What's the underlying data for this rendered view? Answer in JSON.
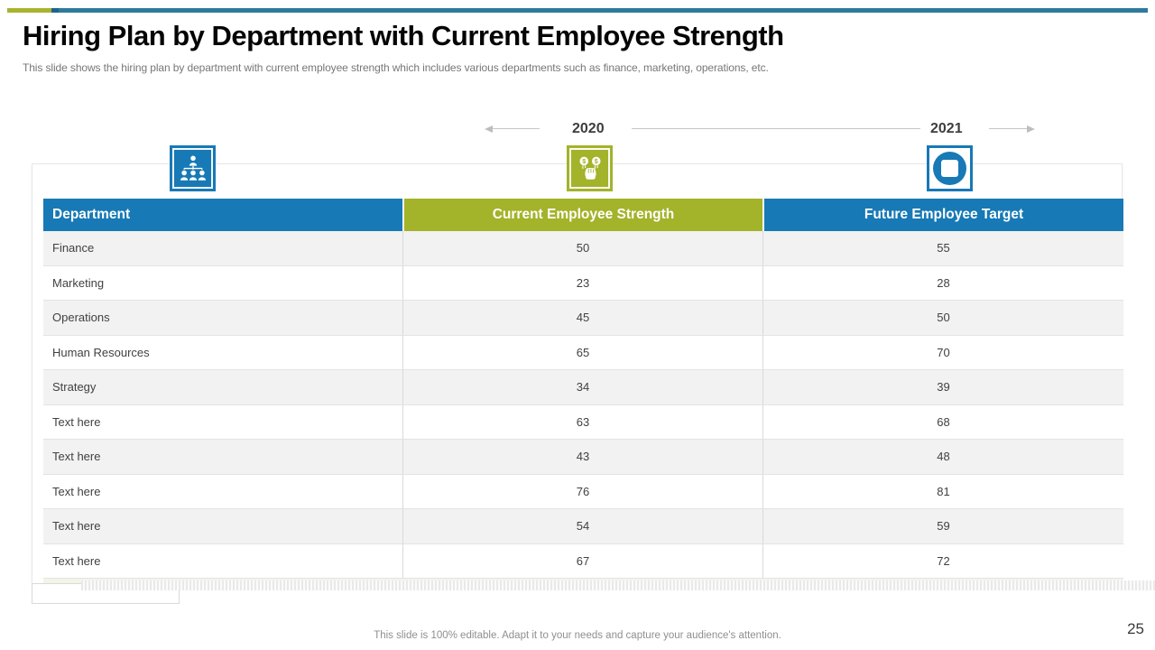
{
  "slide": {
    "title": "Hiring Plan by Department with Current Employee Strength",
    "subtitle": "This slide shows the hiring plan by department with current employee strength which includes various departments such as finance, marketing, operations, etc.",
    "footer_note": "This slide is 100% editable. Adapt it to your needs and capture your audience's attention.",
    "page_number": "25"
  },
  "timeline": {
    "left_year": "2020",
    "right_year": "2021"
  },
  "icons": {
    "left": "org-chart-icon",
    "middle": "money-hand-icon",
    "right": "circle-square-icon"
  },
  "colors": {
    "accent_blue": "#1779b5",
    "accent_olive": "#a3b32a",
    "topbar_blue": "#2d7a9e",
    "topbar_olive": "#a9b42e",
    "row_stripe": "#f2f2f2"
  },
  "table": {
    "columns": [
      "Department",
      "Current Employee Strength",
      "Future Employee Target"
    ],
    "rows": [
      [
        "Finance",
        "50",
        "55"
      ],
      [
        "Marketing",
        "23",
        "28"
      ],
      [
        "Operations",
        "45",
        "50"
      ],
      [
        "Human Resources",
        "65",
        "70"
      ],
      [
        "Strategy",
        "34",
        "39"
      ],
      [
        "Text here",
        "63",
        "68"
      ],
      [
        "Text here",
        "43",
        "48"
      ],
      [
        "Text here",
        "76",
        "81"
      ],
      [
        "Text here",
        "54",
        "59"
      ],
      [
        "Text here",
        "67",
        "72"
      ]
    ]
  }
}
